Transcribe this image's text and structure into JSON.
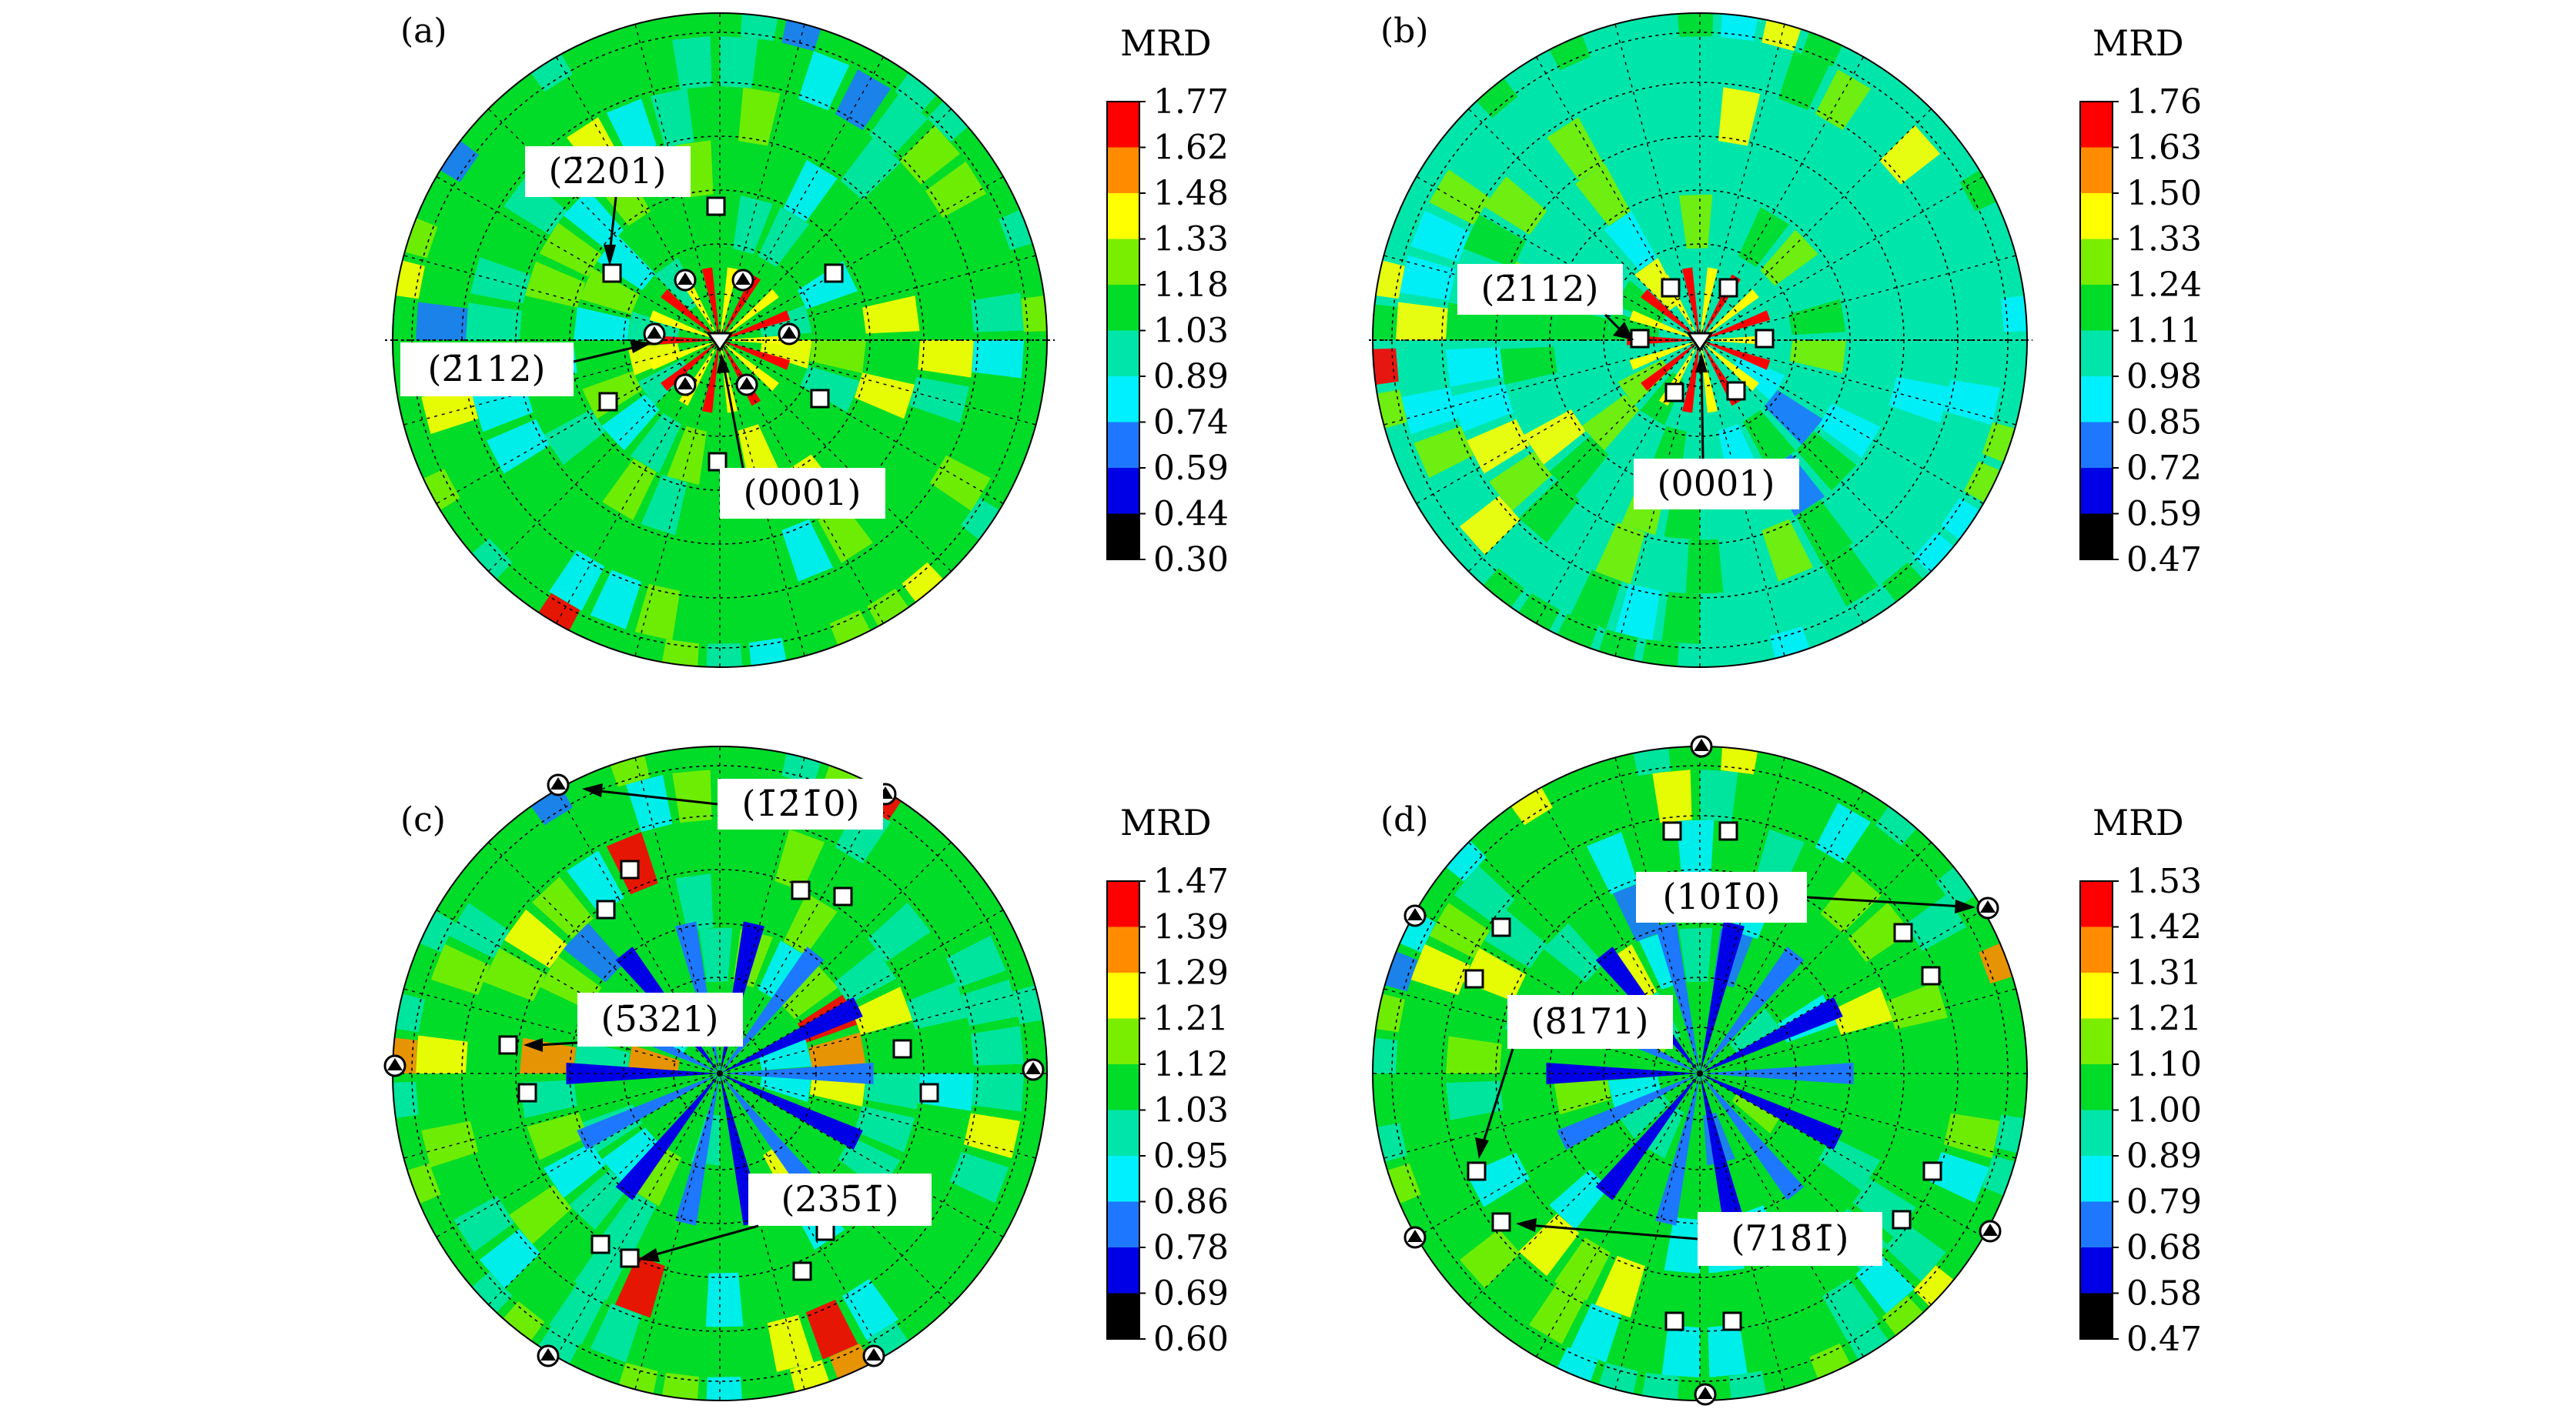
{
  "figure": {
    "colors": {
      "scale": [
        "#000000",
        "#0000e6",
        "#1e78ff",
        "#00f0ff",
        "#00e6aa",
        "#00dc28",
        "#7aee00",
        "#ffff00",
        "#ff8c00",
        "#ff0000"
      ],
      "background": "#ffffff",
      "grid": "#000000",
      "callout_box": "#ffffff"
    },
    "legend_title": "MRD",
    "panels": [
      {
        "label": "(a)",
        "scale_ticks": [
          "1.77",
          "1.62",
          "1.48",
          "1.33",
          "1.18",
          "1.03",
          "0.89",
          "0.74",
          "0.59",
          "0.44",
          "0.30"
        ],
        "base_color": "#00dc28",
        "callouts": [
          {
            "text": "(2̄201)"
          },
          {
            "text": "(2̄112)"
          },
          {
            "text": "(0001)"
          }
        ]
      },
      {
        "label": "(b)",
        "scale_ticks": [
          "1.76",
          "1.63",
          "1.50",
          "1.33",
          "1.24",
          "1.11",
          "0.98",
          "0.85",
          "0.72",
          "0.59",
          "0.47"
        ],
        "base_color": "#00e6aa",
        "callouts": [
          {
            "text": "(2̄112)"
          },
          {
            "text": "(0001)"
          }
        ]
      },
      {
        "label": "(c)",
        "scale_ticks": [
          "1.47",
          "1.39",
          "1.29",
          "1.21",
          "1.12",
          "1.03",
          "0.95",
          "0.86",
          "0.78",
          "0.69",
          "0.60"
        ],
        "base_color": "#00dc28",
        "callouts": [
          {
            "text": "(1̄2̄1̄0)"
          },
          {
            "text": "(5̄321)"
          },
          {
            "text": "(235̄1̄)"
          }
        ]
      },
      {
        "label": "(d)",
        "scale_ticks": [
          "1.53",
          "1.42",
          "1.31",
          "1.21",
          "1.10",
          "1.00",
          "0.89",
          "0.79",
          "0.68",
          "0.58",
          "0.47"
        ],
        "base_color": "#00dc28",
        "callouts": [
          {
            "text": "(101̄0)"
          },
          {
            "text": "(8̄171)"
          },
          {
            "text": "(718̄1̄)"
          }
        ]
      }
    ]
  }
}
